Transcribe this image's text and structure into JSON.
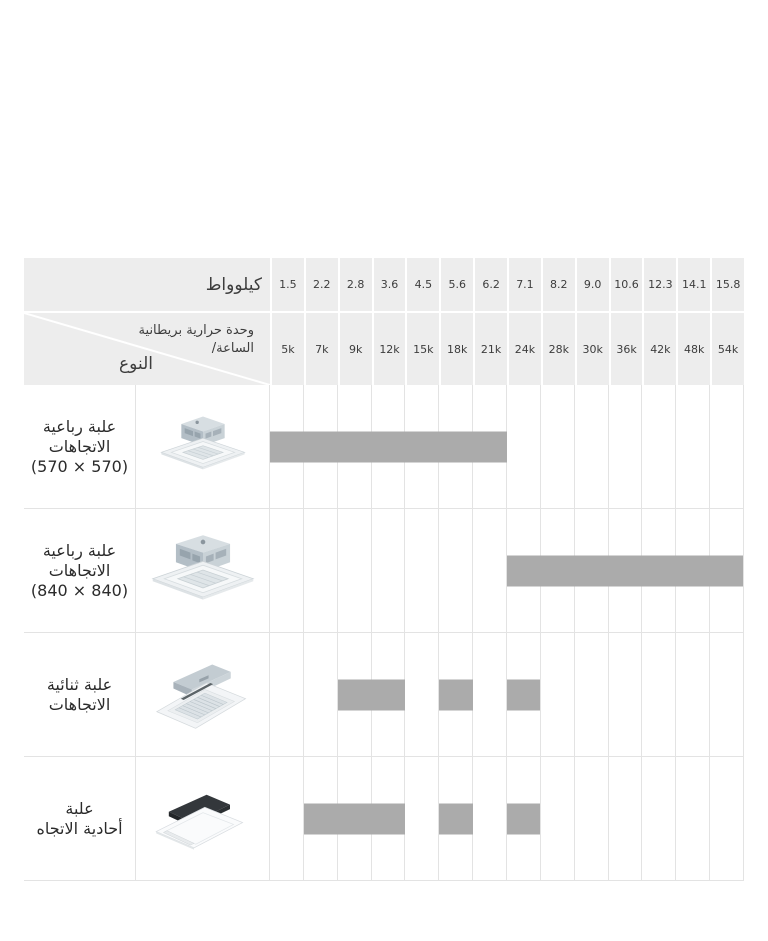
{
  "table": {
    "kw_label": "كيلوواط",
    "btu_label": "وحدة حرارية بريطانية\n/الساعة",
    "type_label": "النوع",
    "column_count": 14,
    "kw_values": [
      "1.5",
      "2.2",
      "2.8",
      "3.6",
      "4.5",
      "5.6",
      "6.2",
      "7.1",
      "8.2",
      "9.0",
      "10.6",
      "12.3",
      "14.1",
      "15.8"
    ],
    "btu_values": [
      "5k",
      "7k",
      "9k",
      "12k",
      "15k",
      "18k",
      "21k",
      "24k",
      "28k",
      "30k",
      "36k",
      "42k",
      "48k",
      "54k"
    ],
    "rows": [
      {
        "label": "علبة رباعية\nالاتجاهات\n(570 × 570)",
        "image": "cassette-4way-570-icon",
        "ranges": [
          {
            "from": 1,
            "to": 7
          }
        ]
      },
      {
        "label": "علبة رباعية\nالاتجاهات\n(840 × 840)",
        "image": "cassette-4way-840-icon",
        "ranges": [
          {
            "from": 8,
            "to": 14
          }
        ]
      },
      {
        "label": "علبة ثنائية\nالاتجاهات",
        "image": "cassette-2way-icon",
        "ranges": [
          {
            "from": 3,
            "to": 4
          },
          {
            "from": 6,
            "to": 6
          },
          {
            "from": 8,
            "to": 8
          }
        ]
      },
      {
        "label": "علبة\nأحادية الاتجاه",
        "image": "cassette-1way-icon",
        "ranges": [
          {
            "from": 2,
            "to": 4
          },
          {
            "from": 6,
            "to": 6
          },
          {
            "from": 8,
            "to": 8
          }
        ]
      }
    ],
    "colors": {
      "header_bg": "#ededed",
      "bar": "#ababab",
      "grid": "#e3e3e3",
      "header_text": "#3d3d3d",
      "label_text": "#2b2b2b"
    }
  },
  "chart_data": {
    "type": "table",
    "title": "",
    "column_header_kw": "كيلوواط",
    "column_header_btu_per_hour": "وحدة حرارية بريطانية /الساعة",
    "row_header": "النوع",
    "capacity_kw": [
      1.5,
      2.2,
      2.8,
      3.6,
      4.5,
      5.6,
      6.2,
      7.1,
      8.2,
      9.0,
      10.6,
      12.3,
      14.1,
      15.8
    ],
    "capacity_btu_hr": [
      "5k",
      "7k",
      "9k",
      "12k",
      "15k",
      "18k",
      "21k",
      "24k",
      "28k",
      "30k",
      "36k",
      "42k",
      "48k",
      "54k"
    ],
    "rows": [
      {
        "type": "علبة رباعية الاتجاهات (570 × 570)",
        "available_kw": [
          1.5,
          2.2,
          2.8,
          3.6,
          4.5,
          5.6,
          6.2
        ]
      },
      {
        "type": "علبة رباعية الاتجاهات (840 × 840)",
        "available_kw": [
          7.1,
          8.2,
          9.0,
          10.6,
          12.3,
          14.1,
          15.8
        ]
      },
      {
        "type": "علبة ثنائية الاتجاهات",
        "available_kw": [
          2.8,
          3.6,
          5.6,
          7.1
        ]
      },
      {
        "type": "علبة أحادية الاتجاه",
        "available_kw": [
          2.2,
          2.8,
          3.6,
          5.6,
          7.1
        ]
      }
    ],
    "legend_position": "none",
    "grid": true
  }
}
